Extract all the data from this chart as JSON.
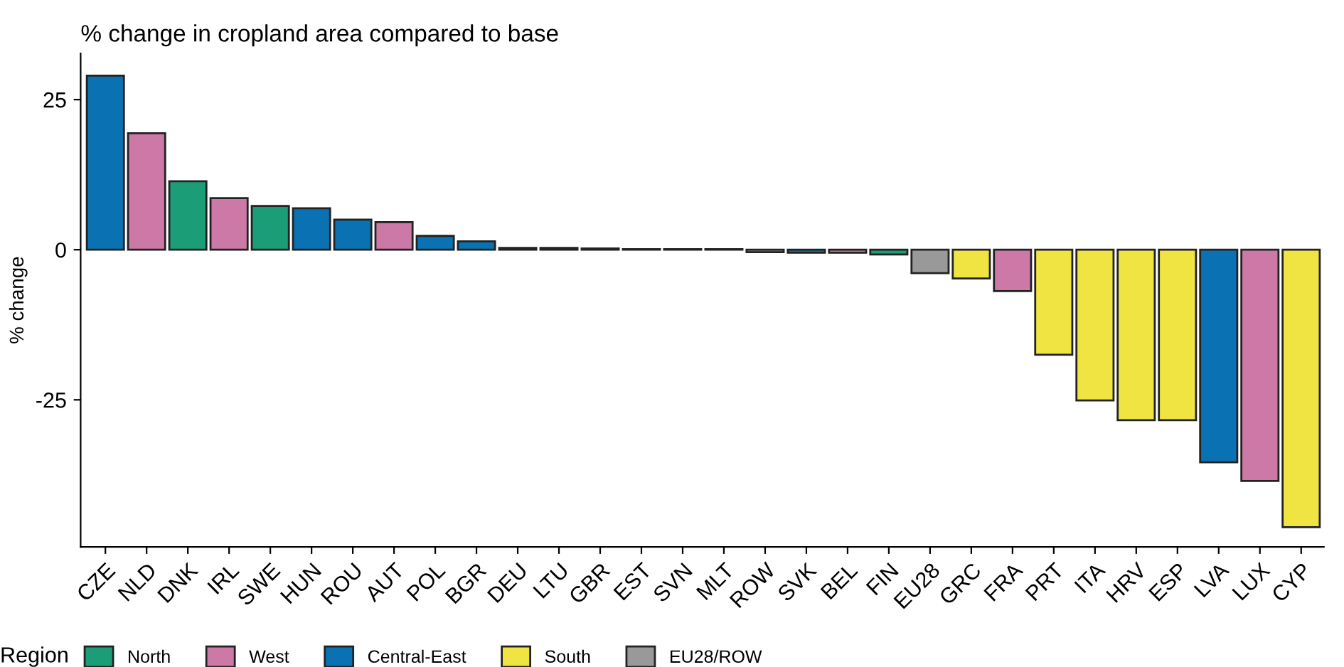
{
  "chart_data": {
    "type": "bar",
    "title": "% change in cropland area compared to base",
    "ylabel": "% change",
    "legend_title": "Region",
    "categories": [
      "CZE",
      "NLD",
      "DNK",
      "IRL",
      "SWE",
      "HUN",
      "ROU",
      "AUT",
      "POL",
      "BGR",
      "DEU",
      "LTU",
      "GBR",
      "EST",
      "SVN",
      "MLT",
      "ROW",
      "SVK",
      "BEL",
      "FIN",
      "EU28",
      "GRC",
      "FRA",
      "PRT",
      "ITA",
      "HRV",
      "ESP",
      "LVA",
      "LUX",
      "CYP"
    ],
    "series": [
      {
        "name": "North",
        "color": "#1b9e77",
        "values": [
          null,
          null,
          11.4,
          null,
          7.3,
          null,
          null,
          null,
          null,
          null,
          null,
          null,
          null,
          null,
          null,
          null,
          null,
          null,
          null,
          -0.8,
          null,
          null,
          null,
          null,
          null,
          null,
          null,
          null,
          null,
          null
        ]
      },
      {
        "name": "West",
        "color": "#cc79a7",
        "values": [
          null,
          19.4,
          null,
          8.6,
          null,
          null,
          null,
          4.6,
          null,
          null,
          0.3,
          null,
          0.2,
          null,
          null,
          null,
          null,
          null,
          -0.5,
          null,
          null,
          null,
          -6.9,
          null,
          null,
          null,
          null,
          null,
          -38.5,
          null
        ]
      },
      {
        "name": "Central-East",
        "color": "#0a72b2",
        "values": [
          29.0,
          null,
          null,
          null,
          null,
          6.9,
          5.0,
          null,
          2.3,
          1.4,
          null,
          0.3,
          null,
          0.1,
          0.1,
          null,
          null,
          -0.5,
          null,
          null,
          null,
          null,
          null,
          null,
          null,
          null,
          null,
          -35.4,
          null,
          null
        ]
      },
      {
        "name": "South",
        "color": "#f0e442",
        "values": [
          null,
          null,
          null,
          null,
          null,
          null,
          null,
          null,
          null,
          null,
          null,
          null,
          null,
          null,
          null,
          0.1,
          null,
          null,
          null,
          null,
          null,
          -4.8,
          null,
          -17.5,
          -25.1,
          -28.4,
          -28.4,
          null,
          null,
          -46.2
        ]
      },
      {
        "name": "EU28/ROW",
        "color": "#999999",
        "values": [
          null,
          null,
          null,
          null,
          null,
          null,
          null,
          null,
          null,
          null,
          null,
          null,
          null,
          null,
          null,
          null,
          -0.4,
          null,
          null,
          null,
          -3.9,
          null,
          null,
          null,
          null,
          null,
          null,
          null,
          null,
          null
        ]
      }
    ],
    "ylim": [
      -49.5,
      32.7
    ],
    "yticks": [
      {
        "value": -25,
        "label": "-25"
      },
      0,
      25
    ],
    "grid": false,
    "legend": "bottom"
  }
}
